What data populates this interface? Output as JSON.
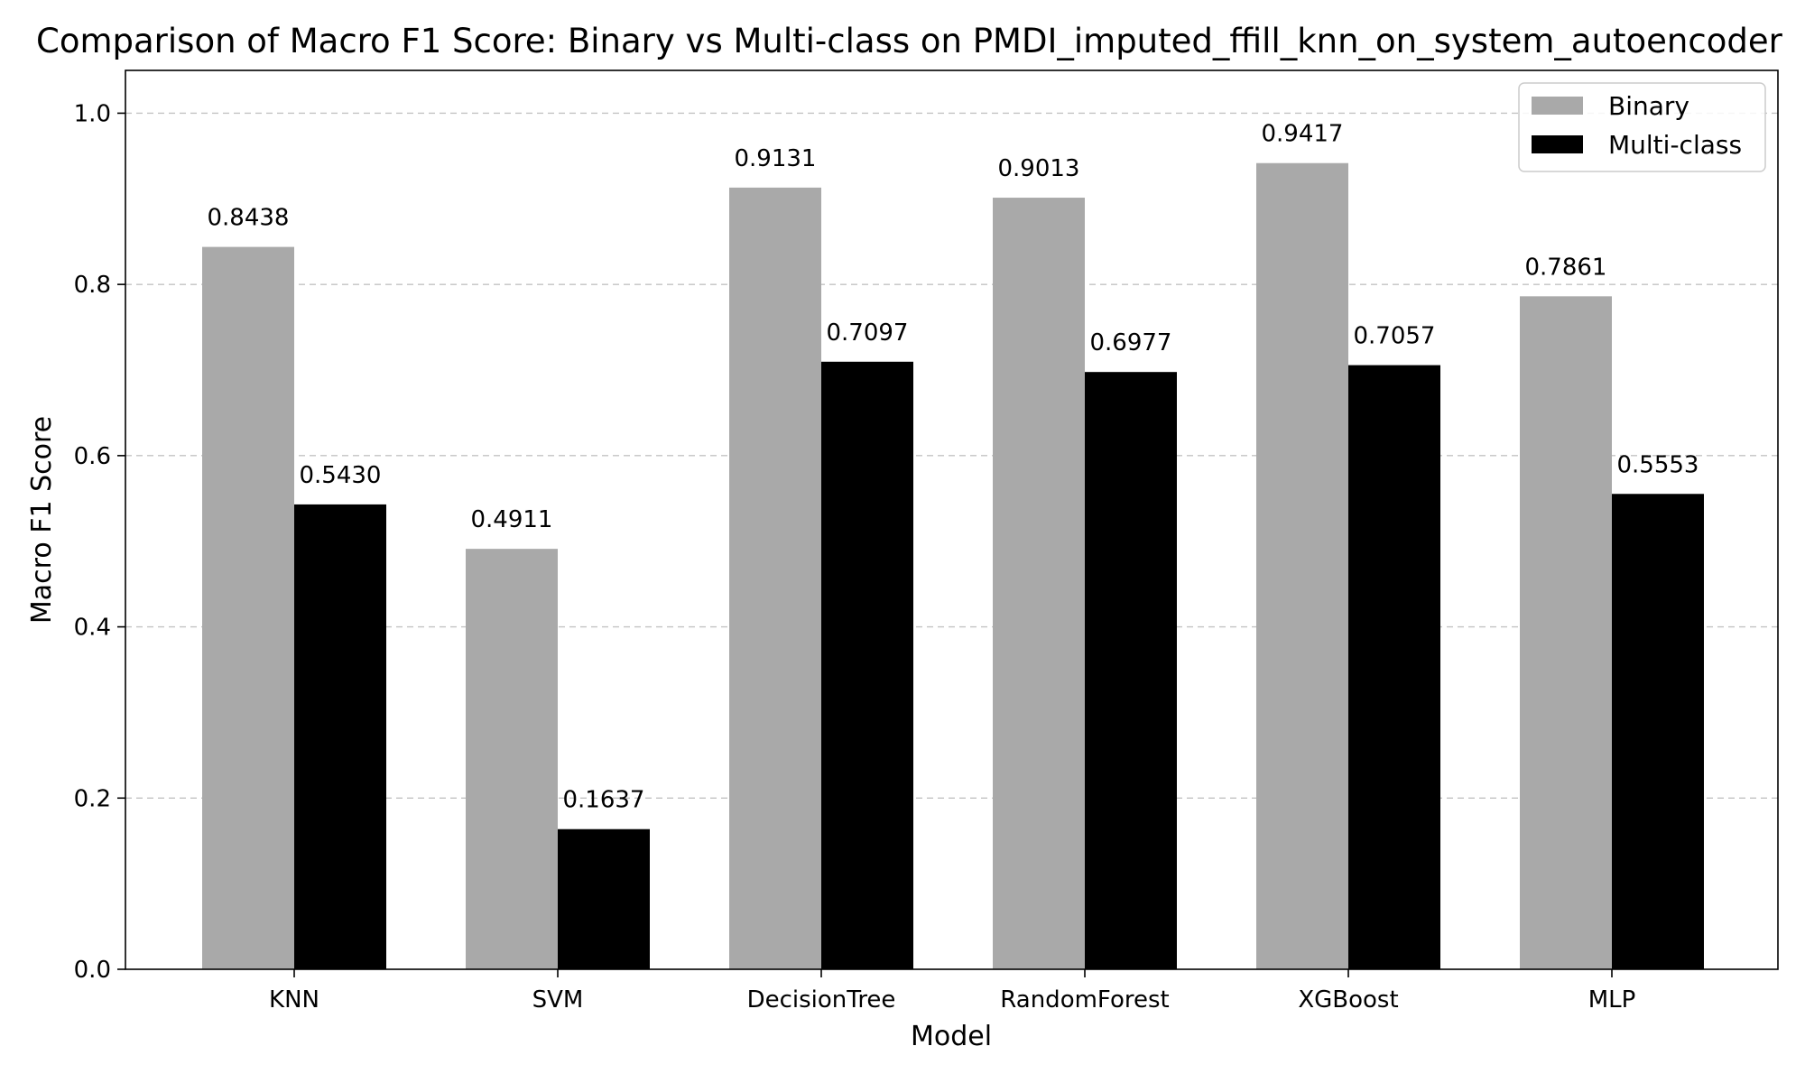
{
  "chart_data": {
    "type": "bar",
    "title": "Comparison of Macro F1 Score: Binary vs Multi-class on PMDI_imputed_ffill_knn_on_system_autoencoder",
    "xlabel": "Model",
    "ylabel": "Macro F1 Score",
    "categories": [
      "KNN",
      "SVM",
      "DecisionTree",
      "RandomForest",
      "XGBoost",
      "MLP"
    ],
    "series": [
      {
        "name": "Binary",
        "color": "#a9a9a9",
        "values": [
          0.8438,
          0.4911,
          0.9131,
          0.9013,
          0.9417,
          0.7861
        ]
      },
      {
        "name": "Multi-class",
        "color": "#000000",
        "values": [
          0.543,
          0.1637,
          0.7097,
          0.6977,
          0.7057,
          0.5553
        ]
      }
    ],
    "data_labels": [
      [
        "0.8438",
        "0.4911",
        "0.9131",
        "0.9013",
        "0.9417",
        "0.7861"
      ],
      [
        "0.5430",
        "0.1637",
        "0.7097",
        "0.6977",
        "0.7057",
        "0.5553"
      ]
    ],
    "ylim": [
      0,
      1.05
    ],
    "yticks": [
      0.0,
      0.2,
      0.4,
      0.6,
      0.8,
      1.0
    ],
    "ytick_labels": [
      "0.0",
      "0.2",
      "0.4",
      "0.6",
      "0.8",
      "1.0"
    ],
    "grid": "y-dashed",
    "legend_position": "top-right"
  }
}
